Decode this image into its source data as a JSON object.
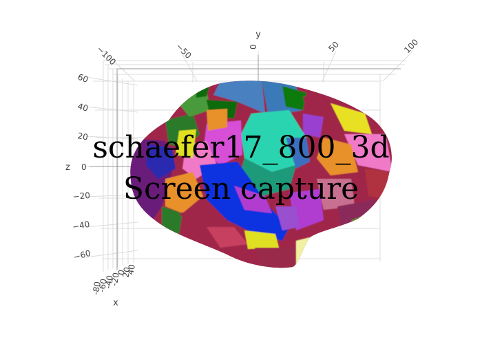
{
  "caption": {
    "line1": "schaefer17_800_3d",
    "line2": "Screen capture"
  },
  "axes": {
    "x": {
      "title": "x",
      "ticks": [
        "40",
        "20",
        "0",
        "-20",
        "-40",
        "-60",
        "-80"
      ]
    },
    "y": {
      "title": "y",
      "ticks": [
        "−100",
        "−50",
        "0",
        "50",
        "100"
      ]
    },
    "z": {
      "title": "z",
      "ticks": [
        "60",
        "40",
        "20",
        "0",
        "−20",
        "−40",
        "−60"
      ]
    }
  },
  "colors": {
    "background": "#ffffff",
    "grid": "#dcdcdc",
    "tick_text": "#444444",
    "parcels": [
      "#7b1f7b",
      "#2a7a2a",
      "#e8902a",
      "#d64fd6",
      "#2ad4b0",
      "#3f7fd0",
      "#b03040",
      "#e0e020",
      "#f07ac8",
      "#c87090",
      "#1030e0",
      "#0a7a0a",
      "#8a2a5a",
      "#2a9a7a",
      "#9a4fd0"
    ]
  }
}
